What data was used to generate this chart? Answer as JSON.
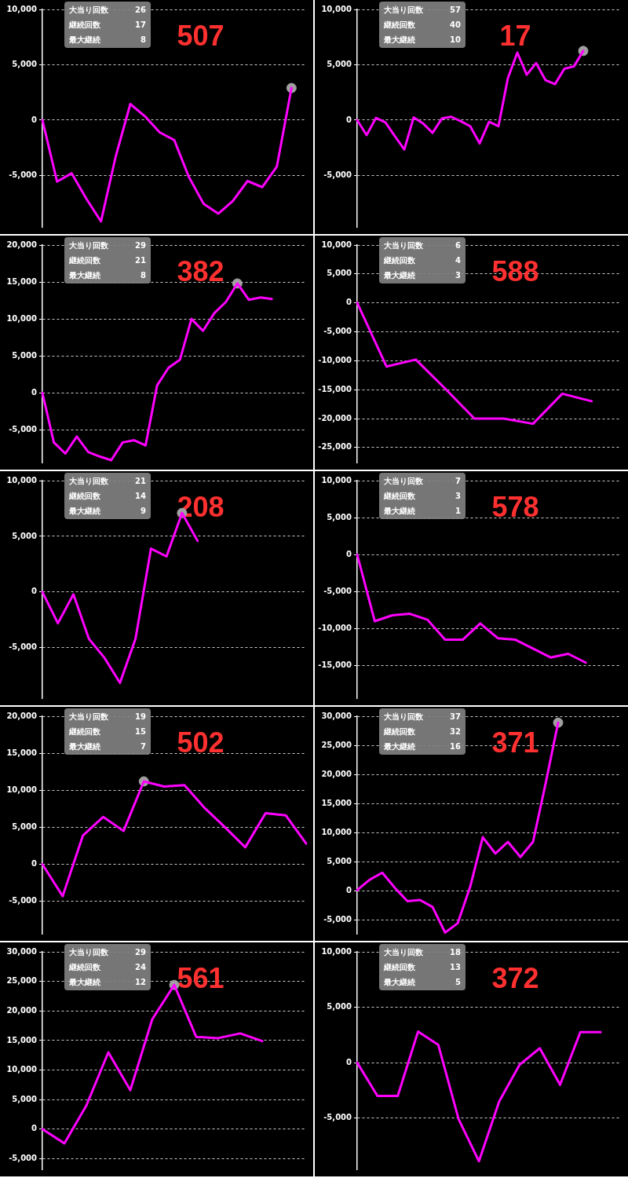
{
  "chart_data": [
    {
      "type": "line",
      "title": "507",
      "annotations": [
        "大当り回数",
        "26",
        "継続回数",
        "17",
        "最大継続",
        "8"
      ],
      "categories": [
        null,
        null,
        null,
        null,
        null,
        null,
        null,
        null,
        null,
        null,
        null,
        null,
        null,
        null,
        null,
        null,
        null,
        null,
        null
      ],
      "ylim": [
        -9650,
        10000
      ],
      "yticks": [
        {
          "value": -5000,
          "label": "-5,000"
        },
        {
          "value": 0,
          "label": "0"
        },
        {
          "value": 5000,
          "label": "5,000"
        },
        {
          "value": 10000,
          "label": "10,000"
        }
      ],
      "grid": "y",
      "tick_labels": "y",
      "marker": "none",
      "series": [
        {
          "color": "#ff00ff",
          "values": [
            0,
            -5550,
            -4800,
            -7100,
            -9150,
            -3300,
            1450,
            350,
            -1100,
            -1800,
            -5150,
            -7550,
            -8450,
            -7300,
            -5500,
            -6050,
            -4200,
            2900,
            null
          ]
        },
        {
          "type": "scatter",
          "marker": "circle",
          "color": "#a0a0a0",
          "values": [
            null,
            null,
            null,
            null,
            null,
            null,
            null,
            null,
            null,
            null,
            null,
            null,
            null,
            null,
            null,
            null,
            null,
            2900,
            null
          ]
        }
      ]
    },
    {
      "type": "line",
      "title": "17",
      "annotations": [
        "大当り回数",
        "57",
        "継続回数",
        "40",
        "最大継続",
        "10"
      ],
      "categories": [
        null,
        null,
        null,
        null,
        null,
        null,
        null,
        null,
        null,
        null,
        null,
        null,
        null,
        null,
        null,
        null,
        null,
        null,
        null,
        null,
        null,
        null,
        null,
        null,
        null,
        null,
        null,
        null,
        null
      ],
      "ylim": [
        -9650,
        10000
      ],
      "yticks": [
        {
          "value": -5000,
          "label": "-5,000"
        },
        {
          "value": 0,
          "label": "0"
        },
        {
          "value": 5000,
          "label": "5,000"
        },
        {
          "value": 10000,
          "label": "10,000"
        }
      ],
      "grid": "y",
      "tick_labels": "y",
      "marker": "none",
      "series": [
        {
          "color": "#ff00ff",
          "values": [
            0,
            -1350,
            200,
            -200,
            -1450,
            -2650,
            250,
            -300,
            -1150,
            150,
            300,
            -100,
            -550,
            -2100,
            -150,
            -550,
            3800,
            6100,
            4100,
            5150,
            3600,
            3250,
            4650,
            4850,
            6250,
            null,
            null,
            null,
            null
          ]
        },
        {
          "type": "scatter",
          "marker": "circle",
          "color": "#a0a0a0",
          "values": [
            null,
            null,
            null,
            null,
            null,
            null,
            null,
            null,
            null,
            null,
            null,
            null,
            null,
            null,
            null,
            null,
            null,
            null,
            null,
            null,
            null,
            null,
            null,
            null,
            6250,
            null,
            null,
            null,
            null
          ]
        }
      ]
    },
    {
      "type": "line",
      "title": "382",
      "annotations": [
        "大当り回数",
        "29",
        "継続回数",
        "21",
        "最大継続",
        "8"
      ],
      "categories": [
        null,
        null,
        null,
        null,
        null,
        null,
        null,
        null,
        null,
        null,
        null,
        null,
        null,
        null,
        null,
        null,
        null,
        null,
        null,
        null,
        null,
        null,
        null,
        null
      ],
      "ylim": [
        -9420,
        20000
      ],
      "yticks": [
        {
          "value": -5000,
          "label": "-5,000"
        },
        {
          "value": 0,
          "label": "0"
        },
        {
          "value": 5000,
          "label": "5,000"
        },
        {
          "value": 10000,
          "label": "10,000"
        },
        {
          "value": 15000,
          "label": "15,000"
        },
        {
          "value": 20000,
          "label": "20,000"
        }
      ],
      "grid": "y",
      "tick_labels": "y",
      "marker": "none",
      "series": [
        {
          "color": "#ff00ff",
          "values": [
            0,
            -6700,
            -8200,
            -5900,
            -8000,
            -8600,
            -9100,
            -6700,
            -6400,
            -7100,
            1000,
            3400,
            4500,
            10000,
            8400,
            10800,
            12300,
            14800,
            12600,
            12900,
            12700,
            null,
            null,
            null
          ]
        },
        {
          "type": "scatter",
          "marker": "circle",
          "color": "#a0a0a0",
          "values": [
            null,
            null,
            null,
            null,
            null,
            null,
            null,
            null,
            null,
            null,
            null,
            null,
            null,
            null,
            null,
            null,
            null,
            14800,
            null,
            null,
            null,
            null,
            null,
            null
          ]
        }
      ]
    },
    {
      "type": "line",
      "title": "588",
      "annotations": [
        "大当り回数",
        "6",
        "継続回数",
        "4",
        "最大継続",
        "3"
      ],
      "categories": [
        null,
        null,
        null,
        null,
        null,
        null,
        null,
        null,
        null,
        null
      ],
      "ylim": [
        -27600,
        10000
      ],
      "yticks": [
        {
          "value": -25000,
          "label": "-25,000"
        },
        {
          "value": -20000,
          "label": "-20,000"
        },
        {
          "value": -15000,
          "label": "-15,000"
        },
        {
          "value": -10000,
          "label": "-10,000"
        },
        {
          "value": -5000,
          "label": "-5,000"
        },
        {
          "value": 0,
          "label": "0"
        },
        {
          "value": 5000,
          "label": "5,000"
        },
        {
          "value": 10000,
          "label": "10,000"
        }
      ],
      "grid": "y",
      "tick_labels": "y",
      "marker": "none",
      "series": [
        {
          "color": "#ff00ff",
          "values": [
            0,
            -11000,
            -9800,
            -14800,
            -20000,
            -20000,
            -20900,
            -15700,
            -17000,
            null
          ]
        }
      ]
    },
    {
      "type": "line",
      "title": "208",
      "annotations": [
        "大当り回数",
        "21",
        "継続回数",
        "14",
        "最大継続",
        "9"
      ],
      "categories": [
        null,
        null,
        null,
        null,
        null,
        null,
        null,
        null,
        null,
        null,
        null,
        null,
        null,
        null,
        null,
        null,
        null,
        null
      ],
      "ylim": [
        -9520,
        10000
      ],
      "yticks": [
        {
          "value": -5000,
          "label": "-5,000"
        },
        {
          "value": 0,
          "label": "0"
        },
        {
          "value": 5000,
          "label": "5,000"
        },
        {
          "value": 10000,
          "label": "10,000"
        }
      ],
      "grid": "y",
      "tick_labels": "y",
      "marker": "none",
      "series": [
        {
          "color": "#ff00ff",
          "values": [
            0,
            -2800,
            -200,
            -4200,
            -5900,
            -8150,
            -4200,
            3900,
            3200,
            7100,
            4600,
            null,
            null,
            null,
            null,
            null,
            null,
            null
          ]
        },
        {
          "type": "scatter",
          "marker": "circle",
          "color": "#a0a0a0",
          "values": [
            null,
            null,
            null,
            null,
            null,
            null,
            null,
            null,
            null,
            7100,
            null,
            null,
            null,
            null,
            null,
            null,
            null,
            null
          ]
        }
      ]
    },
    {
      "type": "line",
      "title": "578",
      "annotations": [
        "大当り回数",
        "7",
        "継続回数",
        "3",
        "最大継続",
        "1"
      ],
      "categories": [
        null,
        null,
        null,
        null,
        null,
        null,
        null,
        null,
        null,
        null,
        null,
        null,
        null,
        null,
        null,
        null
      ],
      "ylim": [
        -19400,
        10000
      ],
      "yticks": [
        {
          "value": -15000,
          "label": "-15,000"
        },
        {
          "value": -10000,
          "label": "-10,000"
        },
        {
          "value": -5000,
          "label": "-5,000"
        },
        {
          "value": 0,
          "label": "0"
        },
        {
          "value": 5000,
          "label": "5,000"
        },
        {
          "value": 10000,
          "label": "10,000"
        }
      ],
      "grid": "y",
      "tick_labels": "y",
      "marker": "none",
      "series": [
        {
          "color": "#ff00ff",
          "values": [
            0,
            -9000,
            -8200,
            -8000,
            -8800,
            -11500,
            -11500,
            -9300,
            -11300,
            -11500,
            -12700,
            -13900,
            -13400,
            -14600,
            null,
            null
          ]
        }
      ]
    },
    {
      "type": "line",
      "title": "502",
      "annotations": [
        "大当り回数",
        "19",
        "継続回数",
        "15",
        "最大継続",
        "7"
      ],
      "categories": [
        null,
        null,
        null,
        null,
        null,
        null,
        null,
        null,
        null,
        null,
        null,
        null,
        null,
        null
      ],
      "ylim": [
        -9380,
        20000
      ],
      "yticks": [
        {
          "value": -5000,
          "label": "-5,000"
        },
        {
          "value": 0,
          "label": "0"
        },
        {
          "value": 5000,
          "label": "5,000"
        },
        {
          "value": 10000,
          "label": "10,000"
        },
        {
          "value": 15000,
          "label": "15,000"
        },
        {
          "value": 20000,
          "label": "20,000"
        }
      ],
      "grid": "y",
      "tick_labels": "y",
      "marker": "none",
      "series": [
        {
          "color": "#ff00ff",
          "values": [
            0,
            -4300,
            3900,
            6400,
            4500,
            11200,
            10500,
            10700,
            7600,
            5000,
            2300,
            6900,
            6600,
            2800
          ]
        },
        {
          "type": "scatter",
          "marker": "circle",
          "color": "#a0a0a0",
          "values": [
            null,
            null,
            null,
            null,
            null,
            11200,
            null,
            null,
            null,
            null,
            null,
            null,
            null,
            null
          ]
        }
      ]
    },
    {
      "type": "line",
      "title": "371",
      "annotations": [
        "大当り回数",
        "37",
        "継続回数",
        "32",
        "最大継続",
        "16"
      ],
      "categories": [
        null,
        null,
        null,
        null,
        null,
        null,
        null,
        null,
        null,
        null,
        null,
        null,
        null,
        null,
        null,
        null,
        null,
        null,
        null,
        null,
        null,
        null
      ],
      "ylim": [
        -7400,
        30000
      ],
      "yticks": [
        {
          "value": -5000,
          "label": "-5,000"
        },
        {
          "value": 0,
          "label": "0"
        },
        {
          "value": 5000,
          "label": "5,000"
        },
        {
          "value": 10000,
          "label": "10,000"
        },
        {
          "value": 15000,
          "label": "15,000"
        },
        {
          "value": 20000,
          "label": "20,000"
        },
        {
          "value": 25000,
          "label": "25,000"
        },
        {
          "value": 30000,
          "label": "30,000"
        }
      ],
      "grid": "y",
      "tick_labels": "y",
      "marker": "none",
      "series": [
        {
          "color": "#ff00ff",
          "values": [
            100,
            1900,
            3100,
            500,
            -1800,
            -1600,
            -2800,
            -7200,
            -5600,
            700,
            9200,
            6400,
            8400,
            5800,
            8400,
            18400,
            28900,
            null,
            null,
            null,
            null,
            null
          ]
        },
        {
          "type": "scatter",
          "marker": "circle",
          "color": "#a0a0a0",
          "values": [
            null,
            null,
            null,
            null,
            null,
            null,
            null,
            null,
            null,
            null,
            null,
            null,
            null,
            null,
            null,
            null,
            28900,
            null,
            null,
            null,
            null,
            null
          ]
        }
      ]
    },
    {
      "type": "line",
      "title": "561",
      "annotations": [
        "大当り回数",
        "29",
        "継続回数",
        "24",
        "最大継続",
        "12"
      ],
      "categories": [
        null,
        null,
        null,
        null,
        null,
        null,
        null,
        null,
        null,
        null,
        null,
        null,
        null
      ],
      "ylim": [
        -6800,
        30000
      ],
      "yticks": [
        {
          "value": -5000,
          "label": "-5,000"
        },
        {
          "value": 0,
          "label": "0"
        },
        {
          "value": 5000,
          "label": "5,000"
        },
        {
          "value": 10000,
          "label": "10,000"
        },
        {
          "value": 15000,
          "label": "15,000"
        },
        {
          "value": 20000,
          "label": "20,000"
        },
        {
          "value": 25000,
          "label": "25,000"
        },
        {
          "value": 30000,
          "label": "30,000"
        }
      ],
      "grid": "y",
      "tick_labels": "y",
      "marker": "none",
      "series": [
        {
          "color": "#ff00ff",
          "values": [
            0,
            -2400,
            4000,
            13000,
            6600,
            18600,
            24400,
            15600,
            15400,
            16200,
            14900,
            null,
            null
          ]
        },
        {
          "type": "scatter",
          "marker": "circle",
          "color": "#a0a0a0",
          "values": [
            null,
            null,
            null,
            null,
            null,
            null,
            24400,
            null,
            null,
            null,
            null,
            null,
            null
          ]
        }
      ]
    },
    {
      "type": "line",
      "title": "372",
      "annotations": [
        "大当り回数",
        "18",
        "継続回数",
        "13",
        "最大継続",
        "5"
      ],
      "categories": [
        null,
        null,
        null,
        null,
        null,
        null,
        null,
        null,
        null,
        null,
        null,
        null,
        null,
        null
      ],
      "ylim": [
        -9630,
        10000
      ],
      "yticks": [
        {
          "value": -5000,
          "label": "-5,000"
        },
        {
          "value": 0,
          "label": "0"
        },
        {
          "value": 5000,
          "label": "5,000"
        },
        {
          "value": 10000,
          "label": "10,000"
        }
      ],
      "grid": "y",
      "tick_labels": "y",
      "marker": "none",
      "series": [
        {
          "color": "#ff00ff",
          "values": [
            0,
            -3000,
            -3000,
            2800,
            1600,
            -5100,
            -8900,
            -3500,
            -200,
            1300,
            -2000,
            2750,
            2750,
            null
          ]
        }
      ]
    }
  ]
}
